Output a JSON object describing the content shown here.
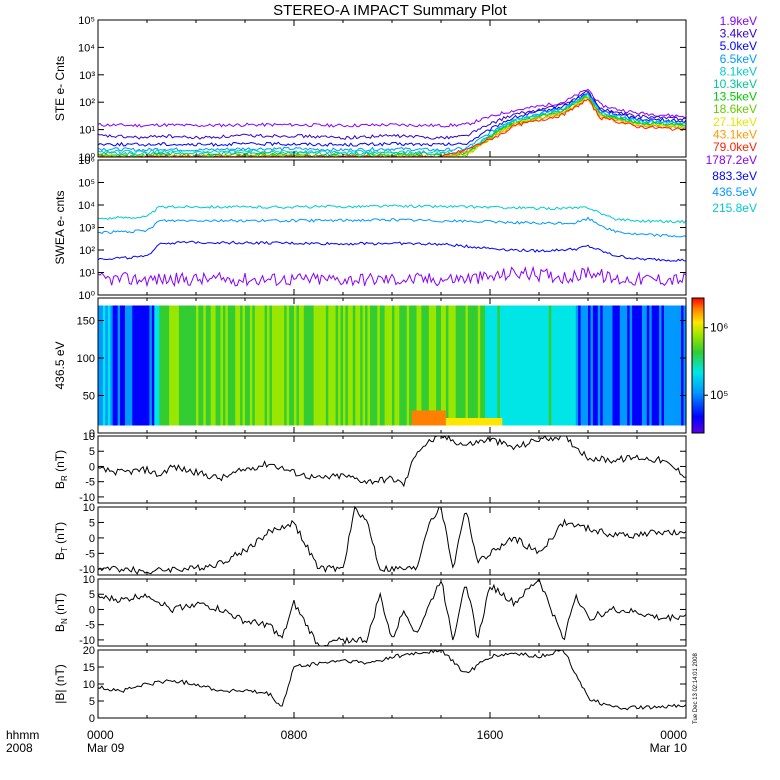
{
  "title": "STEREO-A IMPACT Summary Plot",
  "side_stamp": "Tue Dec 13 02:14:01 2008",
  "x_axis": {
    "row_label_1": "hhmm",
    "row_label_2": "2008",
    "ticks": [
      {
        "time": "0000",
        "date": "Mar 09"
      },
      {
        "time": "0800",
        "date": ""
      },
      {
        "time": "1600",
        "date": ""
      },
      {
        "time": "0000",
        "date": "Mar 10"
      }
    ]
  },
  "colors": {
    "purple": "#8a00ff",
    "indigo": "#3300cc",
    "blue": "#0000ff",
    "medblue": "#0066ff",
    "sky": "#0099ff",
    "cyan": "#00cccc",
    "teal": "#00c896",
    "green": "#00cc00",
    "lime": "#66cc00",
    "yellow": "#cccc00",
    "ygold": "#e6e600",
    "orange": "#ff9900",
    "red": "#ff2200"
  },
  "chart_data": [
    {
      "id": "ste",
      "type": "line",
      "ylabel": "STE e- Cnts",
      "yscale": "log",
      "ylim": [
        1,
        100000
      ],
      "ytick_labels": [
        "10⁰",
        "10¹",
        "10²",
        "10³",
        "10⁴",
        "10⁵"
      ],
      "x_hours": [
        0,
        2,
        2.5,
        4,
        6,
        8,
        10,
        12,
        14,
        15,
        16.5,
        17,
        19,
        20,
        20.5,
        21,
        22,
        24
      ],
      "series": [
        {
          "name": "1.9keV",
          "color": "#8a00ff",
          "values": [
            15,
            14,
            15,
            14,
            15,
            15,
            14,
            15,
            14,
            15,
            40,
            50,
            100,
            300,
            80,
            60,
            40,
            30
          ]
        },
        {
          "name": "3.4keV",
          "color": "#3300cc",
          "values": [
            6,
            5,
            6,
            5,
            6,
            6,
            5,
            6,
            5,
            6,
            25,
            35,
            80,
            250,
            60,
            45,
            30,
            25
          ]
        },
        {
          "name": "5.0keV",
          "color": "#0000ff",
          "values": [
            3,
            2.8,
            3,
            2.8,
            3,
            3,
            2.8,
            3,
            2.8,
            3,
            18,
            28,
            70,
            220,
            50,
            40,
            25,
            20
          ]
        },
        {
          "name": "6.5keV",
          "color": "#0099ff",
          "values": [
            2,
            1.8,
            2,
            1.8,
            2,
            2,
            1.8,
            2,
            1.8,
            2,
            15,
            24,
            60,
            200,
            45,
            35,
            22,
            18
          ]
        },
        {
          "name": "8.1keV",
          "color": "#00cccc",
          "values": [
            1.6,
            1.5,
            1.6,
            1.5,
            1.6,
            1.6,
            1.5,
            1.6,
            1.5,
            1.6,
            13,
            22,
            55,
            190,
            40,
            32,
            20,
            16
          ]
        },
        {
          "name": "10.3keV",
          "color": "#00c896",
          "values": [
            1.4,
            1.3,
            1.4,
            1.3,
            1.4,
            1.4,
            1.3,
            1.4,
            1.3,
            1.4,
            12,
            20,
            50,
            180,
            38,
            30,
            18,
            15
          ]
        },
        {
          "name": "13.5keV",
          "color": "#00cc00",
          "values": [
            1.2,
            1.1,
            1.2,
            1.1,
            1.2,
            1.2,
            1.1,
            1.2,
            1.1,
            1.2,
            11,
            18,
            45,
            170,
            35,
            28,
            17,
            14
          ]
        },
        {
          "name": "18.6keV",
          "color": "#66cc00",
          "values": [
            1.1,
            1,
            1.1,
            1,
            1.1,
            1.1,
            1,
            1.1,
            1,
            1.1,
            10,
            17,
            42,
            160,
            33,
            26,
            16,
            13
          ]
        },
        {
          "name": "27.1keV",
          "color": "#e6e600",
          "values": [
            1,
            1,
            1,
            1,
            1,
            1,
            1,
            1,
            1,
            1.2,
            9,
            16,
            40,
            150,
            30,
            25,
            15,
            12
          ]
        },
        {
          "name": "43.1keV",
          "color": "#ff9900",
          "values": [
            1,
            1,
            1,
            1,
            1,
            1,
            1,
            1,
            1,
            1.5,
            8,
            15,
            38,
            140,
            28,
            24,
            14,
            11
          ]
        },
        {
          "name": "79.0keV",
          "color": "#ff2200",
          "values": [
            1,
            1,
            1,
            1,
            1,
            1,
            1,
            1,
            1,
            1.8,
            7,
            14,
            35,
            130,
            26,
            22,
            13,
            10
          ]
        }
      ]
    },
    {
      "id": "swea",
      "type": "line",
      "ylabel": "SWEA e- cnts",
      "yscale": "log",
      "ylim": [
        1,
        1000000
      ],
      "ytick_labels": [
        "10⁰",
        "10¹",
        "10²",
        "10³",
        "10⁴",
        "10⁵",
        "10⁶"
      ],
      "x_hours": [
        0,
        2,
        2.5,
        4,
        6,
        8,
        10,
        12,
        14,
        16,
        17,
        18,
        19.5,
        20,
        21,
        22,
        24
      ],
      "series": [
        {
          "name": "1787.2eV",
          "color": "#8a00ff",
          "values": [
            5,
            5,
            5,
            5,
            5,
            5,
            5,
            5,
            5,
            6,
            10,
            8,
            6,
            12,
            5,
            5,
            5
          ]
        },
        {
          "name": "883.3eV",
          "color": "#0000ff",
          "values": [
            40,
            50,
            200,
            220,
            210,
            200,
            190,
            200,
            180,
            120,
            100,
            90,
            110,
            150,
            60,
            40,
            35
          ]
        },
        {
          "name": "436.5eV",
          "color": "#0099ff",
          "values": [
            600,
            700,
            2000,
            2100,
            2000,
            2000,
            2100,
            2200,
            2000,
            1800,
            1700,
            1500,
            1600,
            2500,
            700,
            500,
            400
          ]
        },
        {
          "name": "215.8eV",
          "color": "#00cccc",
          "values": [
            2500,
            3000,
            8000,
            8500,
            8000,
            8200,
            8500,
            9000,
            8600,
            8000,
            7500,
            7000,
            7200,
            8000,
            2500,
            2000,
            1800
          ]
        }
      ]
    },
    {
      "id": "pad",
      "type": "heatmap",
      "ylabel": "436.5 eV",
      "ylim": [
        0,
        180
      ],
      "ytick_labels": [
        "0",
        "50",
        "100",
        "150"
      ],
      "colorbar_labels": [
        "10⁵",
        "10⁶"
      ],
      "x_segments": [
        {
          "start": 0,
          "end": 0.5,
          "level": 0.3
        },
        {
          "start": 0.5,
          "end": 2.2,
          "level": 0.08
        },
        {
          "start": 2.2,
          "end": 2.6,
          "level": 0.45
        },
        {
          "start": 2.6,
          "end": 15.8,
          "level": 0.6
        },
        {
          "start": 15.8,
          "end": 19.5,
          "level": 0.38
        },
        {
          "start": 19.5,
          "end": 24,
          "level": 0.12
        }
      ],
      "hot_spots": [
        {
          "start": 12.8,
          "end": 14.2,
          "ymin": 10,
          "ymax": 30,
          "level": 0.88
        },
        {
          "start": 14.2,
          "end": 16.5,
          "ymin": 10,
          "ymax": 20,
          "level": 0.75
        }
      ]
    },
    {
      "id": "br",
      "type": "line",
      "ylabel": "B",
      "ylabel_sub": "R",
      "ylabel_unit": "(nT)",
      "ylim": [
        -12,
        10
      ],
      "ytick_labels": [
        "-10",
        "-5",
        "0",
        "5",
        "10"
      ],
      "x_hours": [
        0,
        1,
        2,
        2.5,
        3,
        4,
        5,
        6,
        7,
        8,
        9,
        10,
        11,
        12,
        12.5,
        13,
        13.5,
        14,
        15,
        16,
        17,
        18,
        19,
        20,
        21,
        22,
        23,
        24
      ],
      "values": [
        -1,
        -2,
        -1,
        -3,
        0,
        -2,
        -4,
        -1,
        1,
        -2,
        -4,
        -3,
        -5,
        -4,
        -6,
        5,
        8,
        10,
        7,
        9,
        6,
        9,
        10,
        3,
        2,
        3,
        2,
        -3
      ]
    },
    {
      "id": "bt",
      "type": "line",
      "ylabel": "B",
      "ylabel_sub": "T",
      "ylabel_unit": "(nT)",
      "ylim": [
        -12,
        10
      ],
      "ytick_labels": [
        "-10",
        "-5",
        "0",
        "5",
        "10"
      ],
      "x_hours": [
        0,
        1,
        2,
        3,
        4,
        5,
        6,
        7,
        8,
        9,
        10,
        10.5,
        11,
        11.5,
        12,
        12.5,
        13,
        13.5,
        14,
        14.5,
        15,
        15.5,
        16,
        17,
        18,
        19,
        20,
        21,
        22,
        23,
        24
      ],
      "values": [
        -10,
        -10,
        -11,
        -10,
        -10,
        -8,
        -4,
        2,
        5,
        -10,
        -10,
        10,
        5,
        -10,
        -10,
        -10,
        -10,
        5,
        10,
        -10,
        10,
        -8,
        -5,
        0,
        -5,
        5,
        3,
        1,
        1,
        2,
        1
      ]
    },
    {
      "id": "bn",
      "type": "line",
      "ylabel": "B",
      "ylabel_sub": "N",
      "ylabel_unit": "(nT)",
      "ylim": [
        -12,
        10
      ],
      "ytick_labels": [
        "-10",
        "-5",
        "0",
        "5",
        "10"
      ],
      "x_hours": [
        0,
        1,
        2,
        3,
        4,
        5,
        6,
        7,
        7.5,
        8,
        9,
        10,
        11,
        11.5,
        12,
        12.5,
        13,
        14,
        14.5,
        15,
        15.5,
        16,
        17,
        18,
        19,
        19.5,
        20,
        21,
        22,
        23,
        24
      ],
      "values": [
        4,
        3,
        5,
        0,
        2,
        0,
        -4,
        -5,
        -10,
        2,
        -12,
        -10,
        -10,
        5,
        -10,
        0,
        -8,
        10,
        -10,
        10,
        -10,
        8,
        2,
        10,
        -10,
        5,
        -3,
        0,
        -1,
        -3,
        -2
      ]
    },
    {
      "id": "bmag",
      "type": "line",
      "ylabel": "|B|",
      "ylabel_unit": "(nT)",
      "ylim": [
        0,
        20
      ],
      "ytick_labels": [
        "0",
        "5",
        "10",
        "15",
        "20"
      ],
      "x_hours": [
        0,
        1,
        2,
        3,
        4,
        5,
        6,
        7,
        7.5,
        8,
        9,
        10,
        11,
        12,
        13,
        14,
        15,
        16,
        17,
        18,
        19,
        20,
        21,
        22,
        23,
        24
      ],
      "values": [
        9,
        8,
        10,
        11,
        10,
        8,
        8,
        7,
        3,
        15,
        16,
        17,
        16,
        18,
        19,
        20,
        13,
        18,
        19,
        18,
        20,
        6,
        3,
        3,
        3,
        4
      ]
    }
  ]
}
